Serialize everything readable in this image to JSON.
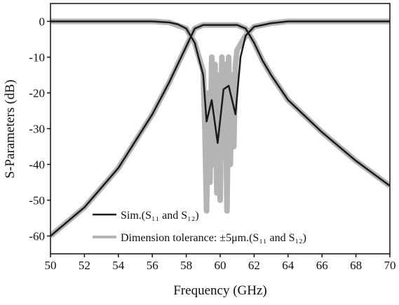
{
  "chart_data": {
    "type": "line",
    "x_label": "Frequency (GHz)",
    "y_label": "S-Parameters (dB)",
    "xlim": [
      50,
      70
    ],
    "xticks": [
      50,
      52,
      54,
      56,
      58,
      60,
      62,
      64,
      66,
      68,
      70
    ],
    "ylim": [
      -65,
      5
    ],
    "yticks": [
      0,
      -10,
      -20,
      -30,
      -40,
      -50,
      -60
    ],
    "legend": "lower left",
    "series": [
      {
        "name": "Dimension tolerance: ±5μm.(S₁₁ and S₁₂)",
        "color": "#b4b4b4",
        "width": 8,
        "curves": [
          {
            "x": [
              50,
              52,
              54,
              56,
              57,
              57.5,
              58,
              58.5,
              59,
              59.5,
              60,
              60.5,
              61,
              61.5,
              62,
              62.5,
              63,
              64,
              66,
              68,
              70
            ],
            "values": [
              -60,
              -52,
              -41,
              -26,
              -17,
              -12,
              -7,
              -2,
              -1,
              -1,
              -1,
              -1,
              -1,
              -2,
              -6,
              -11,
              -15,
              -22,
              -31,
              -39,
              -46
            ]
          },
          {
            "x": [
              50,
              56,
              57,
              58,
              58.5,
              59,
              59.1,
              59.2,
              59.3,
              59.4,
              59.5,
              59.6,
              59.7,
              59.8,
              59.9,
              60,
              60.1,
              60.2,
              60.3,
              60.4,
              60.5,
              60.6,
              60.7,
              60.8,
              60.9,
              61,
              61.5,
              62,
              63,
              64,
              70
            ],
            "values": [
              0,
              0,
              -0.3,
              -2,
              -6,
              -14,
              -30,
              -53,
              -20,
              -45,
              -10,
              -40,
              -12,
              -48,
              -15,
              -50,
              -10,
              -38,
              -12,
              -53,
              -10,
              -40,
              -15,
              -35,
              -12,
              -8,
              -4,
              -1.5,
              -0.5,
              0,
              0
            ]
          }
        ]
      },
      {
        "name": "Sim.(S₁₁ and S₁₂)",
        "color": "#1a1a1a",
        "width": 2.5,
        "curves": [
          {
            "x": [
              50,
              52,
              54,
              56,
              57,
              57.5,
              58,
              58.5,
              59,
              59.5,
              60,
              60.5,
              61,
              61.5,
              62,
              62.5,
              63,
              64,
              66,
              68,
              70
            ],
            "values": [
              -60,
              -52,
              -41,
              -26,
              -17,
              -12,
              -7,
              -2,
              -1,
              -1,
              -1,
              -1,
              -1,
              -2,
              -6,
              -11,
              -15,
              -22,
              -31,
              -39,
              -46
            ]
          },
          {
            "x": [
              50,
              56,
              57,
              57.5,
              58,
              58.5,
              59,
              59.2,
              59.5,
              59.85,
              60.2,
              60.5,
              60.9,
              61.2,
              61.5,
              62,
              63,
              64,
              70
            ],
            "values": [
              0,
              0,
              -0.3,
              -0.8,
              -2,
              -6,
              -15,
              -28,
              -22,
              -34,
              -19,
              -18,
              -26,
              -10,
              -4,
              -1.5,
              -0.5,
              0,
              0
            ]
          }
        ]
      }
    ]
  }
}
